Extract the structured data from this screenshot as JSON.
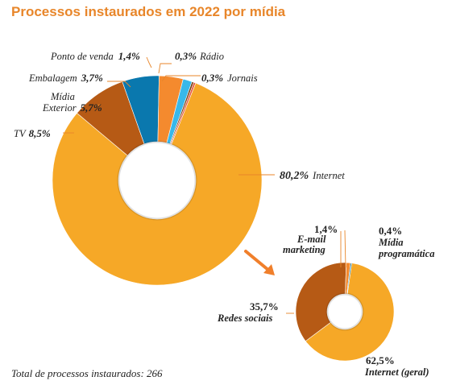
{
  "title": "Processos instaurados em 2022 por mídia",
  "footer": "Total de processos instaurados: 266",
  "chart_data": [
    {
      "type": "pie",
      "title": "Processos instaurados em 2022 por mídia",
      "slices": [
        {
          "label": "Internet",
          "value": 80.2,
          "value_text": "80,2%",
          "color": "#f6a827"
        },
        {
          "label": "TV",
          "value": 8.5,
          "value_text": "8,5%",
          "color": "#b65a15"
        },
        {
          "label": "Mídia Exterior",
          "value": 5.7,
          "value_text": "5,7%",
          "color": "#0a78ae"
        },
        {
          "label": "Embalagem",
          "value": 3.7,
          "value_text": "3,7%",
          "color": "#f48a2e"
        },
        {
          "label": "Ponto de venda",
          "value": 1.4,
          "value_text": "1,4%",
          "color": "#38b8ea"
        },
        {
          "label": "Rádio",
          "value": 0.3,
          "value_text": "0,3%",
          "color": "#7b3f10"
        },
        {
          "label": "Jornais",
          "value": 0.3,
          "value_text": "0,3%",
          "color": "#e7553b"
        }
      ]
    },
    {
      "type": "pie",
      "title": "",
      "slices": [
        {
          "label": "Internet (geral)",
          "value": 62.5,
          "value_text": "62,5%",
          "color": "#f6a827"
        },
        {
          "label": "Redes sociais",
          "value": 35.7,
          "value_text": "35,7%",
          "color": "#b65a15"
        },
        {
          "label": "E-mail marketing",
          "value": 1.4,
          "value_text": "1,4%",
          "color": "#f48a2e"
        },
        {
          "label": "Mídia programática",
          "value": 0.4,
          "value_text": "0,4%",
          "color": "#0a78ae"
        }
      ]
    }
  ],
  "arrow_color": "#f07f2b",
  "leader_color": "#e8862a"
}
